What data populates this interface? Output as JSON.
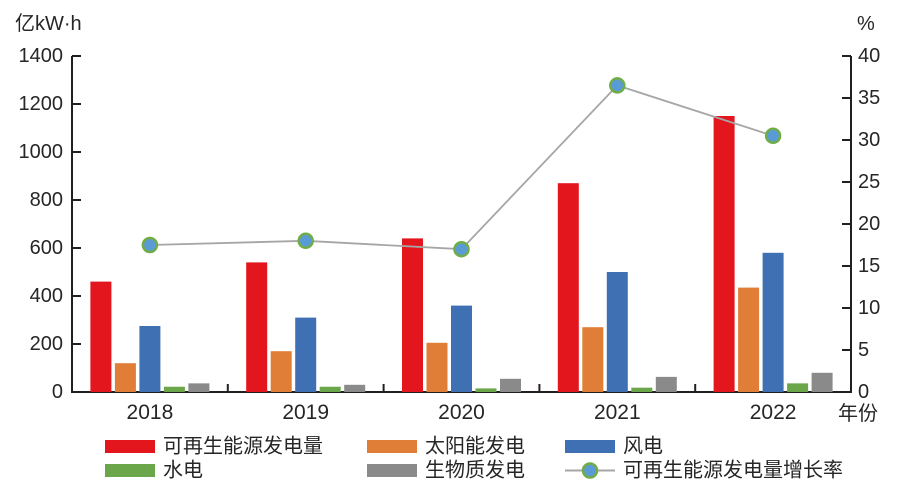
{
  "page": {
    "background": "#ffffff",
    "text_color": "#262626",
    "axis_color": "#231f20"
  },
  "chart_data": {
    "type": "bar",
    "subtype": "grouped-bar-with-line",
    "title": "",
    "categories": [
      "2018",
      "2019",
      "2020",
      "2021",
      "2022"
    ],
    "xlabel": "年份",
    "left_axis": {
      "title": "亿kW·h",
      "min": 0,
      "max": 1400,
      "step": 200,
      "ticks": [
        0,
        200,
        400,
        600,
        800,
        1000,
        1200,
        1400
      ]
    },
    "right_axis": {
      "title": "%",
      "min": 0,
      "max": 40,
      "step": 5,
      "ticks": [
        0,
        5,
        10,
        15,
        20,
        25,
        30,
        35,
        40
      ]
    },
    "grid": "off",
    "legend_position": "bottom",
    "bar_series": [
      {
        "name": "可再生能源发电量",
        "color": "#e3151d",
        "values": [
          460,
          540,
          640,
          870,
          1150
        ]
      },
      {
        "name": "太阳能发电",
        "color": "#e07d36",
        "values": [
          120,
          170,
          205,
          270,
          435
        ]
      },
      {
        "name": "风电",
        "color": "#4070b4",
        "values": [
          275,
          310,
          360,
          500,
          580
        ]
      },
      {
        "name": "水电",
        "color": "#6ba64a",
        "values": [
          22,
          22,
          15,
          18,
          36
        ]
      },
      {
        "name": "生物质发电",
        "color": "#8a8a8a",
        "values": [
          36,
          30,
          55,
          63,
          80
        ]
      }
    ],
    "line_series": {
      "name": "可再生能源发电量增长率",
      "axis": "right",
      "line_color": "#a6a6a6",
      "marker_fill": "#5b9bd5",
      "marker_stroke": "#70ad47",
      "values": [
        17.5,
        18.0,
        17.0,
        36.5,
        30.5
      ]
    },
    "legend_rows": [
      [
        "可再生能源发电量",
        "太阳能发电",
        "风电"
      ],
      [
        "水电",
        "生物质发电",
        "可再生能源发电量增长率"
      ]
    ]
  }
}
